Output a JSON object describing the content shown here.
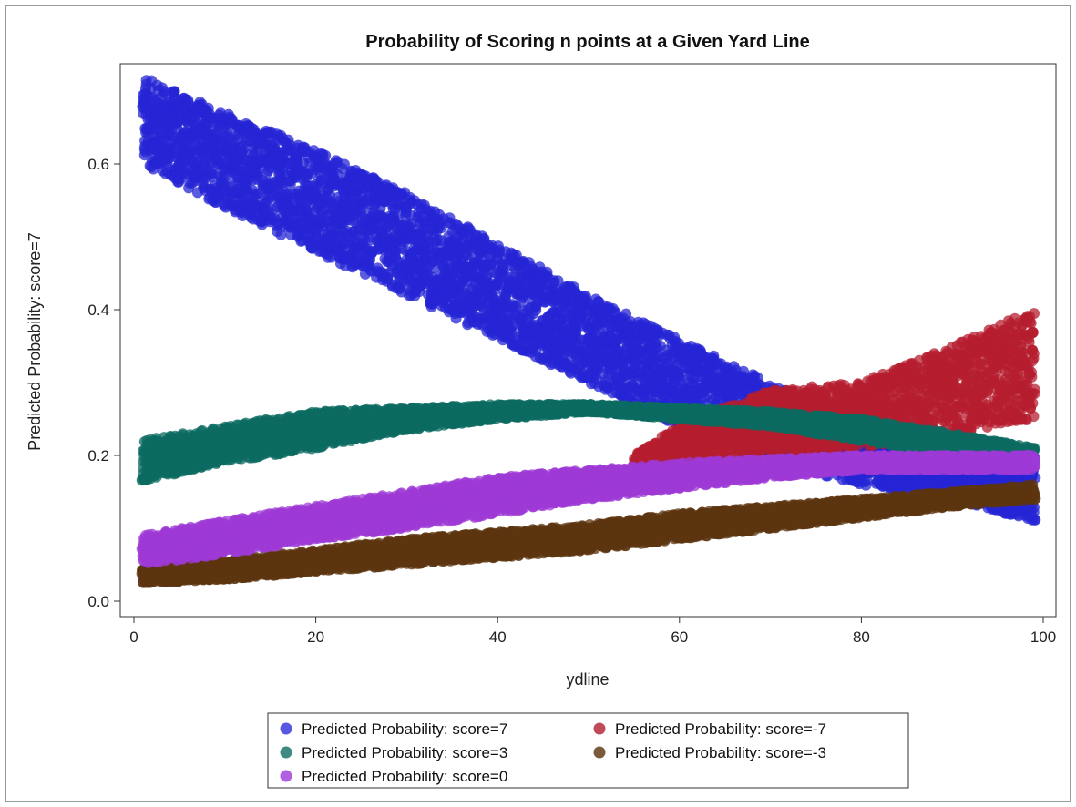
{
  "chart_data": {
    "type": "scatter",
    "title": "Probability of Scoring n points at a Given Yard Line",
    "xlabel": "ydline",
    "ylabel": "Predicted Probability: score=7",
    "xlim": [
      0,
      100
    ],
    "ylim": [
      0,
      0.72
    ],
    "xticks": [
      0,
      20,
      40,
      60,
      80,
      100
    ],
    "yticks": [
      0.0,
      0.2,
      0.4,
      0.6
    ],
    "xtick_labels": [
      "0",
      "20",
      "40",
      "60",
      "80",
      "100"
    ],
    "ytick_labels": [
      "0.0",
      "0.2",
      "0.4",
      "0.6"
    ],
    "grid": false,
    "legend_position": "bottom-center",
    "series": [
      {
        "name": "Predicted Probability: score=7",
        "color": "#2626d6",
        "x": [
          1,
          10,
          20,
          30,
          40,
          50,
          60,
          70,
          80,
          90,
          99
        ],
        "y_upper": [
          0.72,
          0.67,
          0.62,
          0.56,
          0.49,
          0.42,
          0.36,
          0.3,
          0.25,
          0.2,
          0.18
        ],
        "y_lower": [
          0.6,
          0.54,
          0.48,
          0.42,
          0.36,
          0.3,
          0.24,
          0.19,
          0.16,
          0.14,
          0.11
        ]
      },
      {
        "name": "Predicted Probability: score=-7",
        "color": "#b51d2f",
        "x": [
          55,
          60,
          70,
          80,
          90,
          99
        ],
        "y_upper": [
          0.2,
          0.24,
          0.29,
          0.3,
          0.35,
          0.4
        ],
        "y_lower": [
          0.17,
          0.19,
          0.2,
          0.21,
          0.23,
          0.25
        ]
      },
      {
        "name": "Predicted Probability: score=3",
        "color": "#0c6b62",
        "x": [
          1,
          10,
          20,
          30,
          40,
          50,
          60,
          70,
          80,
          90,
          99
        ],
        "y_upper": [
          0.22,
          0.24,
          0.26,
          0.265,
          0.27,
          0.27,
          0.265,
          0.26,
          0.25,
          0.23,
          0.21
        ],
        "y_lower": [
          0.165,
          0.19,
          0.21,
          0.235,
          0.25,
          0.26,
          0.25,
          0.24,
          0.22,
          0.2,
          0.19
        ]
      },
      {
        "name": "Predicted Probability: score=-3",
        "color": "#5c3510",
        "x": [
          1,
          10,
          20,
          30,
          40,
          50,
          60,
          70,
          80,
          90,
          99
        ],
        "y_upper": [
          0.045,
          0.055,
          0.07,
          0.085,
          0.095,
          0.105,
          0.12,
          0.13,
          0.14,
          0.15,
          0.16
        ],
        "y_lower": [
          0.025,
          0.03,
          0.04,
          0.05,
          0.06,
          0.07,
          0.085,
          0.1,
          0.115,
          0.13,
          0.14
        ]
      },
      {
        "name": "Predicted Probability: score=0",
        "color": "#9e3ad6",
        "x": [
          1,
          10,
          20,
          30,
          40,
          50,
          60,
          70,
          80,
          90,
          99
        ],
        "y_upper": [
          0.09,
          0.11,
          0.13,
          0.15,
          0.17,
          0.18,
          0.19,
          0.195,
          0.2,
          0.2,
          0.2
        ],
        "y_lower": [
          0.05,
          0.065,
          0.085,
          0.1,
          0.12,
          0.14,
          0.155,
          0.17,
          0.18,
          0.18,
          0.18
        ]
      }
    ],
    "legend_entries": [
      {
        "name": "Predicted Probability: score=7",
        "color": "#5858e0"
      },
      {
        "name": "Predicted Probability: score=-7",
        "color": "#c14a5a"
      },
      {
        "name": "Predicted Probability: score=3",
        "color": "#3e8a82"
      },
      {
        "name": "Predicted Probability: score=-3",
        "color": "#7a5a3a"
      },
      {
        "name": "Predicted Probability: score=0",
        "color": "#b060e0"
      }
    ]
  }
}
